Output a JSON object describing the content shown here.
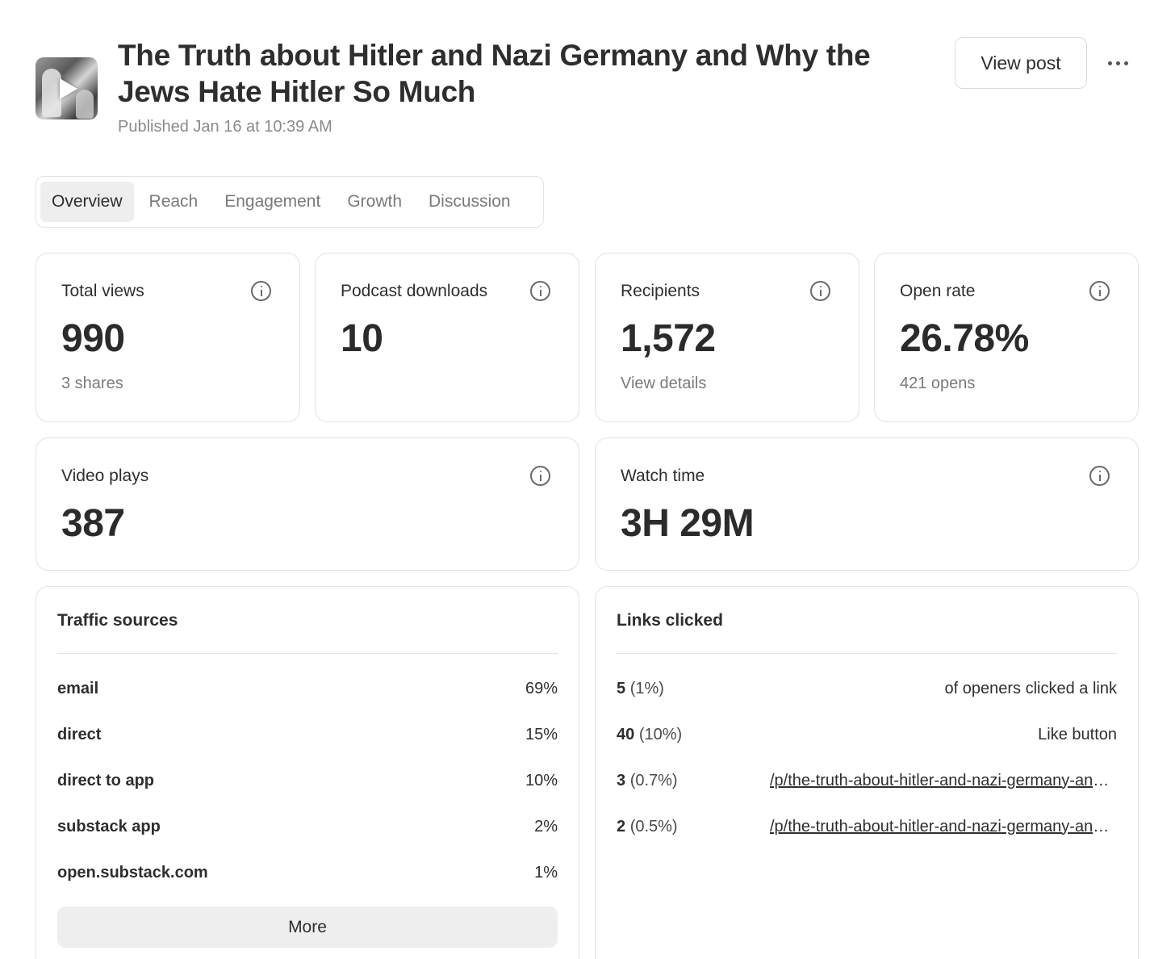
{
  "post": {
    "title": "The Truth about Hitler and Nazi Germany and Why the Jews Hate Hitler So Much",
    "published": "Published Jan 16 at 10:39 AM",
    "thumbnail_icon": "play-icon"
  },
  "header": {
    "view_post_label": "View post",
    "more_icon": "more-horizontal-icon"
  },
  "tabs": [
    {
      "label": "Overview",
      "active": true
    },
    {
      "label": "Reach",
      "active": false
    },
    {
      "label": "Engagement",
      "active": false
    },
    {
      "label": "Growth",
      "active": false
    },
    {
      "label": "Discussion",
      "active": false
    }
  ],
  "stats": {
    "total_views": {
      "label": "Total views",
      "value": "990",
      "sub": "3 shares"
    },
    "podcast_downloads": {
      "label": "Podcast downloads",
      "value": "10"
    },
    "recipients": {
      "label": "Recipients",
      "value": "1,572",
      "sub": "View details"
    },
    "open_rate": {
      "label": "Open rate",
      "value": "26.78%",
      "sub": "421 opens"
    },
    "video_plays": {
      "label": "Video plays",
      "value": "387"
    },
    "watch_time": {
      "label": "Watch time",
      "value": "3H 29M"
    }
  },
  "traffic_sources": {
    "title": "Traffic sources",
    "rows": [
      {
        "name": "email",
        "pct": "69%"
      },
      {
        "name": "direct",
        "pct": "15%"
      },
      {
        "name": "direct to app",
        "pct": "10%"
      },
      {
        "name": "substack app",
        "pct": "2%"
      },
      {
        "name": "open.substack.com",
        "pct": "1%"
      }
    ],
    "more_label": "More"
  },
  "links_clicked": {
    "title": "Links clicked",
    "rows": [
      {
        "count": "5",
        "pct": "(1%)",
        "target": "of openers clicked a link"
      },
      {
        "count": "40",
        "pct": "(10%)",
        "target": "Like button"
      },
      {
        "count": "3",
        "pct": "(0.7%)",
        "target": "/p/the-truth-about-hitler-and-nazi-germany-and-why-the"
      },
      {
        "count": "2",
        "pct": "(0.5%)",
        "target": "/p/the-truth-about-hitler-and-nazi-germany-and-why-the"
      }
    ]
  }
}
